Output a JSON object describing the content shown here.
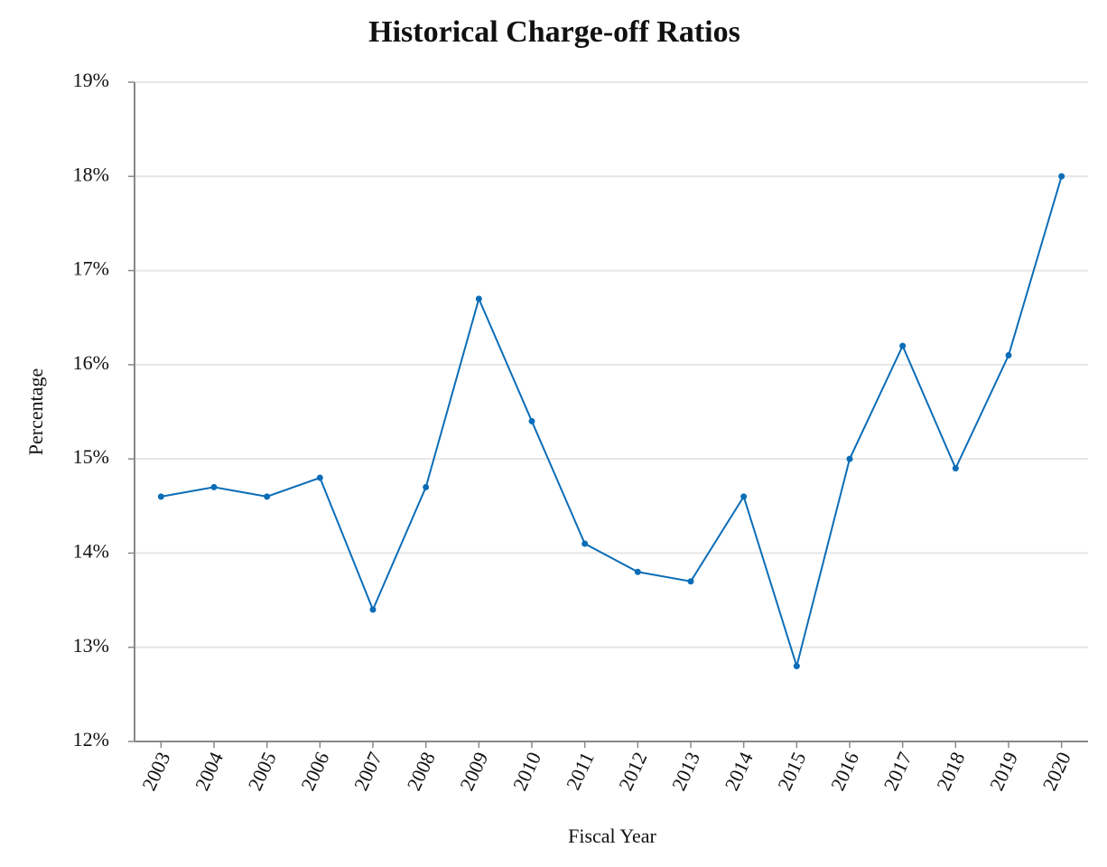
{
  "chart_data": {
    "type": "line",
    "title": "Historical Charge-off Ratios",
    "x_label": "Fiscal Year",
    "y_label": "Percentage",
    "categories": [
      "2003",
      "2004",
      "2005",
      "2006",
      "2007",
      "2008",
      "2009",
      "2010",
      "2011",
      "2012",
      "2013",
      "2014",
      "2015",
      "2016",
      "2017",
      "2018",
      "2019",
      "2020"
    ],
    "series": [
      {
        "name": "Charge-off Ratio",
        "color": "#0b6db7",
        "values": [
          14.6,
          14.7,
          14.6,
          14.8,
          13.4,
          14.7,
          16.7,
          15.4,
          14.1,
          13.8,
          13.7,
          14.6,
          12.8,
          15.0,
          16.2,
          14.9,
          16.1,
          18.0
        ]
      }
    ],
    "ylim": [
      12,
      19
    ],
    "yticks": [
      {
        "value": 12,
        "label": "12%"
      },
      {
        "value": 13,
        "label": "13%"
      },
      {
        "value": 14,
        "label": "14%"
      },
      {
        "value": 15,
        "label": "15%"
      },
      {
        "value": 16,
        "label": "16%"
      },
      {
        "value": 17,
        "label": "17%"
      },
      {
        "value": 18,
        "label": "18%"
      },
      {
        "value": 19,
        "label": "19%"
      }
    ],
    "grid": true
  }
}
